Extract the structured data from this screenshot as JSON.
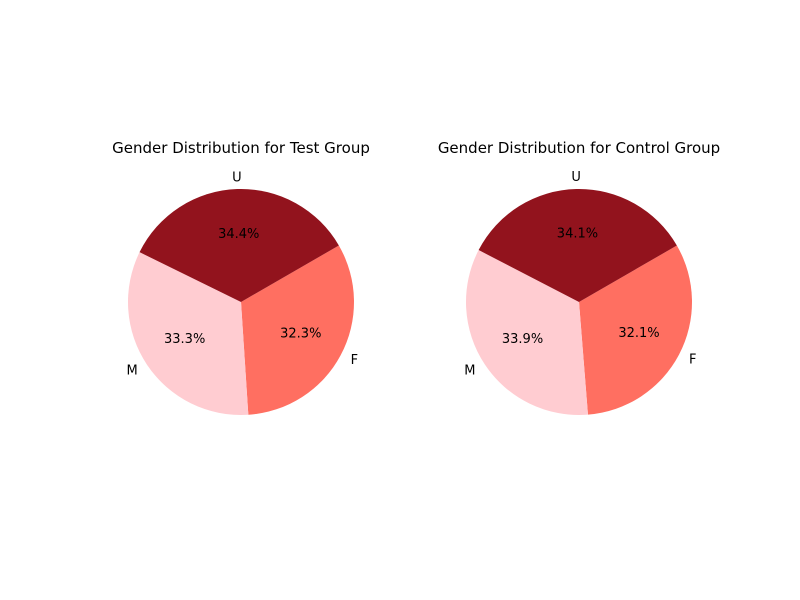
{
  "chart_data": [
    {
      "type": "pie",
      "title": "Gender Distribution for Test Group",
      "categories": [
        "F",
        "M",
        "U"
      ],
      "values": [
        32.3,
        33.3,
        34.4
      ],
      "value_labels": [
        "32.3%",
        "33.3%",
        "34.4%"
      ],
      "colors": [
        "#ff6f61",
        "#ffccd1",
        "#92131d"
      ],
      "start_angle_deg": 30,
      "direction": "clockwise"
    },
    {
      "type": "pie",
      "title": "Gender Distribution for Control Group",
      "categories": [
        "F",
        "M",
        "U"
      ],
      "values": [
        32.1,
        33.9,
        34.1
      ],
      "value_labels": [
        "32.1%",
        "33.9%",
        "34.1%"
      ],
      "colors": [
        "#ff6f61",
        "#ffccd1",
        "#92131d"
      ],
      "start_angle_deg": 30,
      "direction": "clockwise"
    }
  ]
}
